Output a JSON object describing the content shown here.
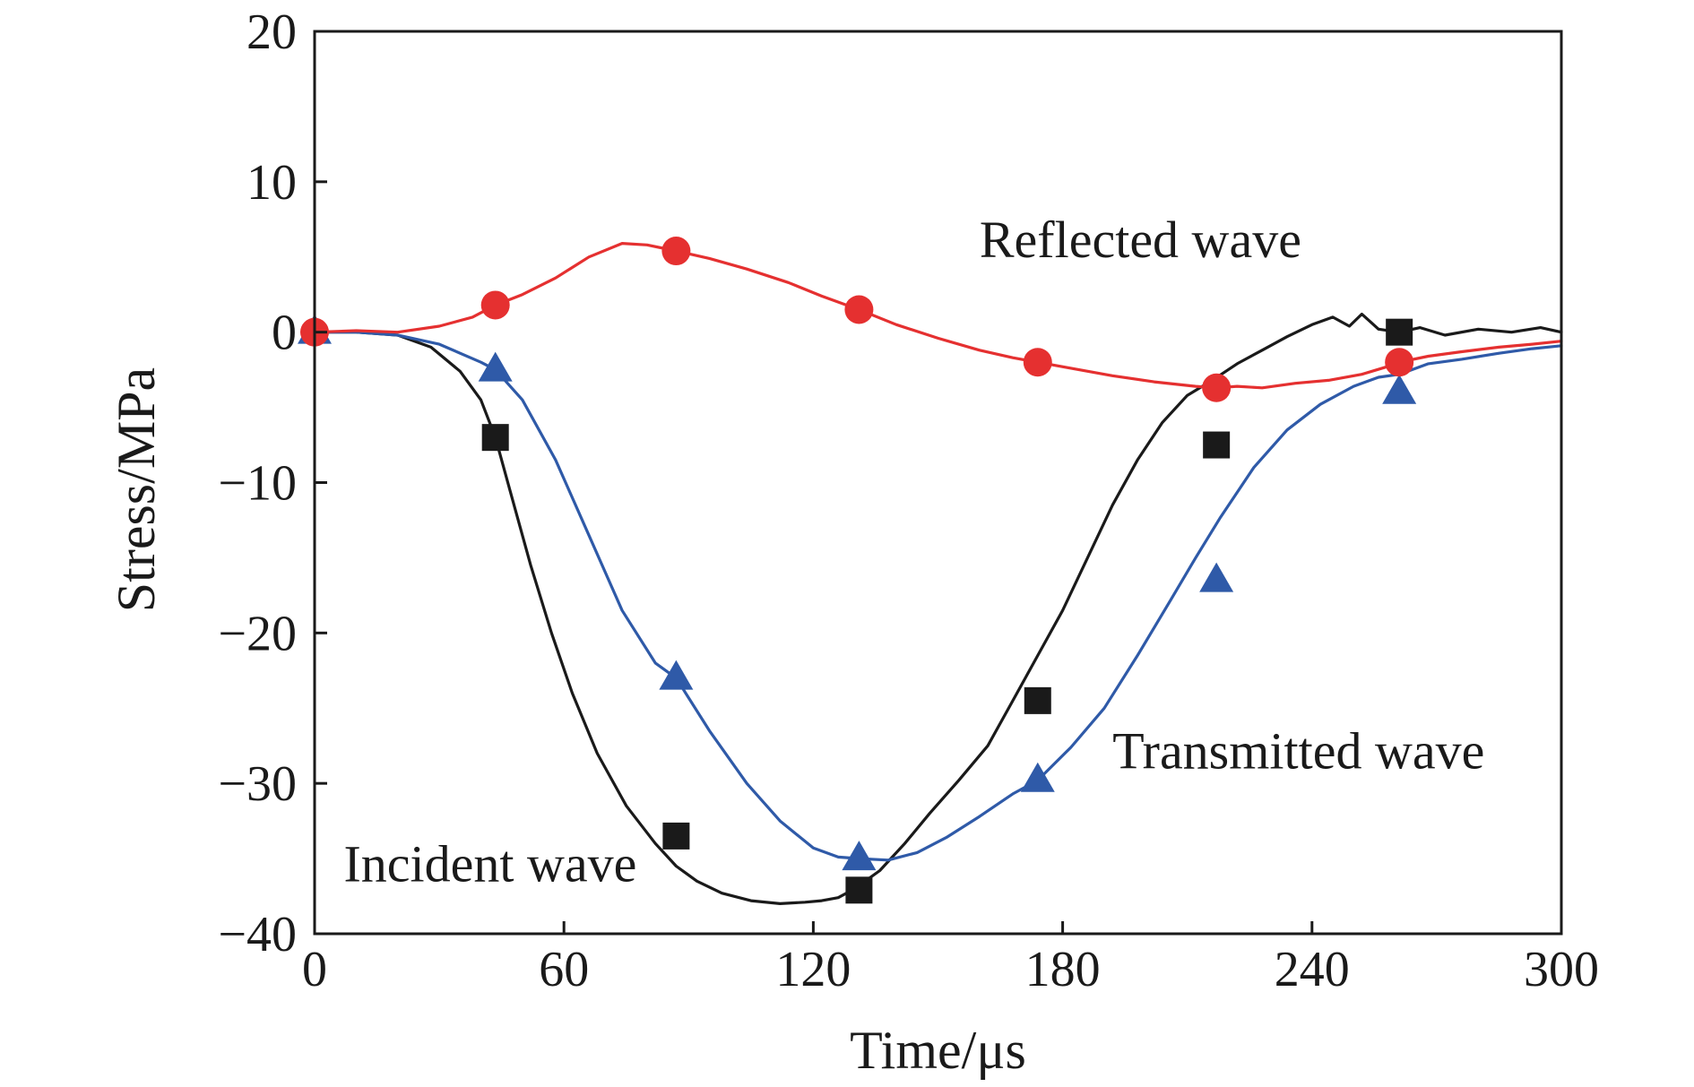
{
  "chart_data": {
    "type": "line",
    "xlabel": "Time/μs",
    "ylabel": "Stress/MPa",
    "xlim": [
      0,
      300
    ],
    "ylim": [
      -40,
      20
    ],
    "xticks": [
      0,
      60,
      120,
      180,
      240,
      300
    ],
    "yticks": [
      20,
      10,
      0,
      -10,
      -20,
      -30,
      -40
    ],
    "xtick_labels": [
      "0",
      "60",
      "120",
      "180",
      "240",
      "300"
    ],
    "ytick_labels": [
      "20",
      "10",
      "0",
      "−10",
      "−20",
      "−30",
      "−40"
    ],
    "grid": false,
    "legend": "none",
    "series": [
      {
        "name": "Incident wave",
        "color": "#1a1a1a",
        "marker": "square",
        "x": [
          0,
          10,
          20,
          28,
          35,
          40,
          43.5,
          47,
          52,
          57,
          62,
          68,
          75,
          82,
          87,
          92,
          98,
          105,
          112,
          118,
          122,
          126,
          130,
          136,
          142,
          148,
          155,
          162,
          168,
          174,
          180,
          186,
          192,
          198,
          204,
          210,
          216,
          222,
          228,
          234,
          240,
          245,
          249,
          252,
          256,
          261,
          266,
          272,
          280,
          288,
          295,
          300
        ],
        "y": [
          0,
          0,
          -0.2,
          -1.0,
          -2.6,
          -4.5,
          -7.0,
          -10.5,
          -15.5,
          -20.0,
          -24.0,
          -28.0,
          -31.5,
          -34.0,
          -35.5,
          -36.5,
          -37.3,
          -37.8,
          -38.0,
          -37.9,
          -37.8,
          -37.6,
          -37.0,
          -35.8,
          -34.0,
          -32.0,
          -29.8,
          -27.5,
          -24.5,
          -21.5,
          -18.5,
          -15.0,
          -11.5,
          -8.5,
          -6.0,
          -4.2,
          -3.2,
          -2.1,
          -1.2,
          -0.3,
          0.5,
          1.0,
          0.4,
          1.2,
          0.2,
          0.0,
          0.3,
          -0.2,
          0.2,
          0.0,
          0.3,
          0.0
        ]
      },
      {
        "name": "Transmitted wave",
        "color": "#2f5aa8",
        "marker": "triangle",
        "x": [
          0,
          10,
          20,
          30,
          40,
          43.5,
          50,
          58,
          66,
          74,
          82,
          87,
          95,
          104,
          112,
          120,
          126,
          131,
          138,
          145,
          152,
          160,
          168,
          174,
          182,
          190,
          198,
          206,
          212,
          218,
          226,
          234,
          242,
          250,
          256,
          261,
          268,
          276,
          285,
          293,
          300
        ],
        "y": [
          0,
          0,
          -0.2,
          -0.8,
          -2.0,
          -2.5,
          -4.5,
          -8.5,
          -13.5,
          -18.5,
          -22.0,
          -23.0,
          -26.5,
          -30.0,
          -32.5,
          -34.3,
          -34.9,
          -35.0,
          -35.1,
          -34.6,
          -33.6,
          -32.2,
          -30.7,
          -29.8,
          -27.6,
          -25.0,
          -21.5,
          -17.8,
          -15.0,
          -12.3,
          -9.0,
          -6.5,
          -4.8,
          -3.6,
          -3.0,
          -2.8,
          -2.1,
          -1.8,
          -1.4,
          -1.1,
          -0.9
        ]
      },
      {
        "name": "Reflected wave",
        "color": "#e53030",
        "marker": "circle",
        "x": [
          0,
          10,
          20,
          30,
          38,
          43.5,
          50,
          58,
          66,
          74,
          80,
          87,
          95,
          104,
          114,
          122,
          131,
          140,
          150,
          160,
          168,
          174,
          182,
          192,
          202,
          212,
          217,
          222,
          228,
          236,
          244,
          252,
          258,
          261,
          268,
          276,
          285,
          293,
          300
        ],
        "y": [
          0,
          0.1,
          0,
          0.4,
          1.0,
          1.8,
          2.5,
          3.6,
          5.0,
          5.9,
          5.8,
          5.4,
          4.9,
          4.2,
          3.3,
          2.4,
          1.5,
          0.5,
          -0.4,
          -1.2,
          -1.7,
          -2.0,
          -2.4,
          -2.9,
          -3.3,
          -3.6,
          -3.7,
          -3.6,
          -3.7,
          -3.4,
          -3.2,
          -2.8,
          -2.3,
          -2.0,
          -1.6,
          -1.3,
          -1.0,
          -0.8,
          -0.6
        ]
      }
    ],
    "markers": {
      "Incident wave": {
        "x": [
          43.5,
          87,
          131,
          174,
          217,
          261
        ],
        "y": [
          -7.0,
          -33.5,
          -37.1,
          -24.5,
          -7.5,
          0.0
        ]
      },
      "Transmitted wave": {
        "x": [
          0,
          43.5,
          87,
          131,
          174,
          217,
          261
        ],
        "y": [
          0,
          -2.5,
          -23.0,
          -35.0,
          -29.8,
          -16.5,
          -4.0
        ]
      },
      "Reflected wave": {
        "x": [
          0,
          43.5,
          87,
          131,
          174,
          217,
          261
        ],
        "y": [
          0,
          1.8,
          5.4,
          1.5,
          -2.0,
          -3.7,
          -2.0
        ]
      }
    },
    "annotations": [
      {
        "text": "Reflected wave",
        "series": "Reflected wave",
        "x": 160,
        "y": 5.0
      },
      {
        "text": "Transmitted wave",
        "series": "Transmitted wave",
        "x": 192,
        "y": -29.0
      },
      {
        "text": "Incident wave",
        "series": "Incident wave",
        "x": 7,
        "y": -36.5
      }
    ]
  }
}
